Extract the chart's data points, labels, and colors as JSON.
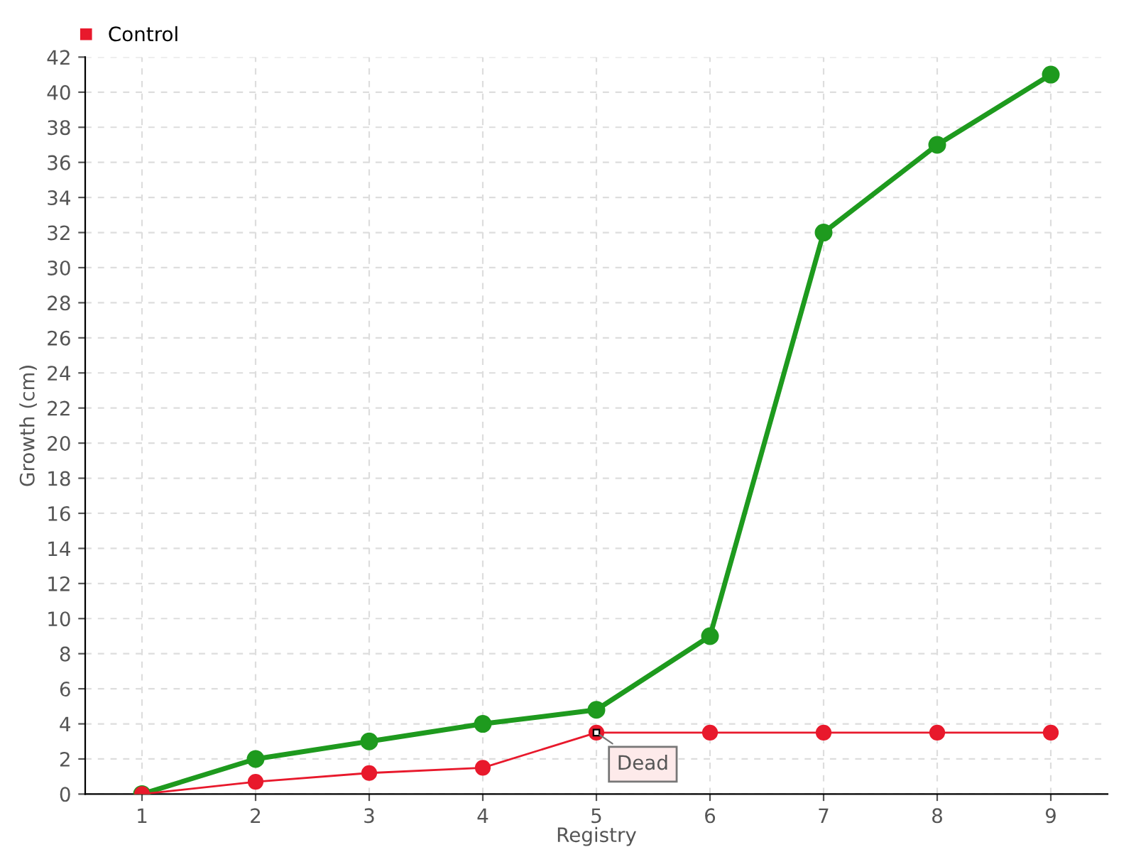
{
  "chart_data": {
    "type": "line",
    "xlabel": "Registry",
    "ylabel": "Growth (cm)",
    "categories": [
      "1",
      "2",
      "3",
      "4",
      "5",
      "6",
      "7",
      "8",
      "9"
    ],
    "series": [
      {
        "color": "#1e9a1e",
        "values": [
          0,
          2,
          3,
          4,
          4.8,
          9,
          32,
          37,
          41
        ]
      },
      {
        "name": "Control",
        "color": "#e8192c",
        "values": [
          0,
          0.7,
          1.2,
          1.5,
          3.5,
          3.5,
          3.5,
          3.5,
          3.5
        ]
      }
    ],
    "annotations": [
      {
        "text": "Dead",
        "x": "5",
        "y": 3.5
      }
    ],
    "ylim": [
      0,
      42
    ],
    "yticks": [
      0,
      2,
      4,
      6,
      8,
      10,
      12,
      14,
      16,
      18,
      20,
      22,
      24,
      26,
      28,
      30,
      32,
      34,
      36,
      38,
      40,
      42
    ],
    "grid": true,
    "legend": "top left",
    "marker": "circle",
    "line_style": "solid"
  }
}
